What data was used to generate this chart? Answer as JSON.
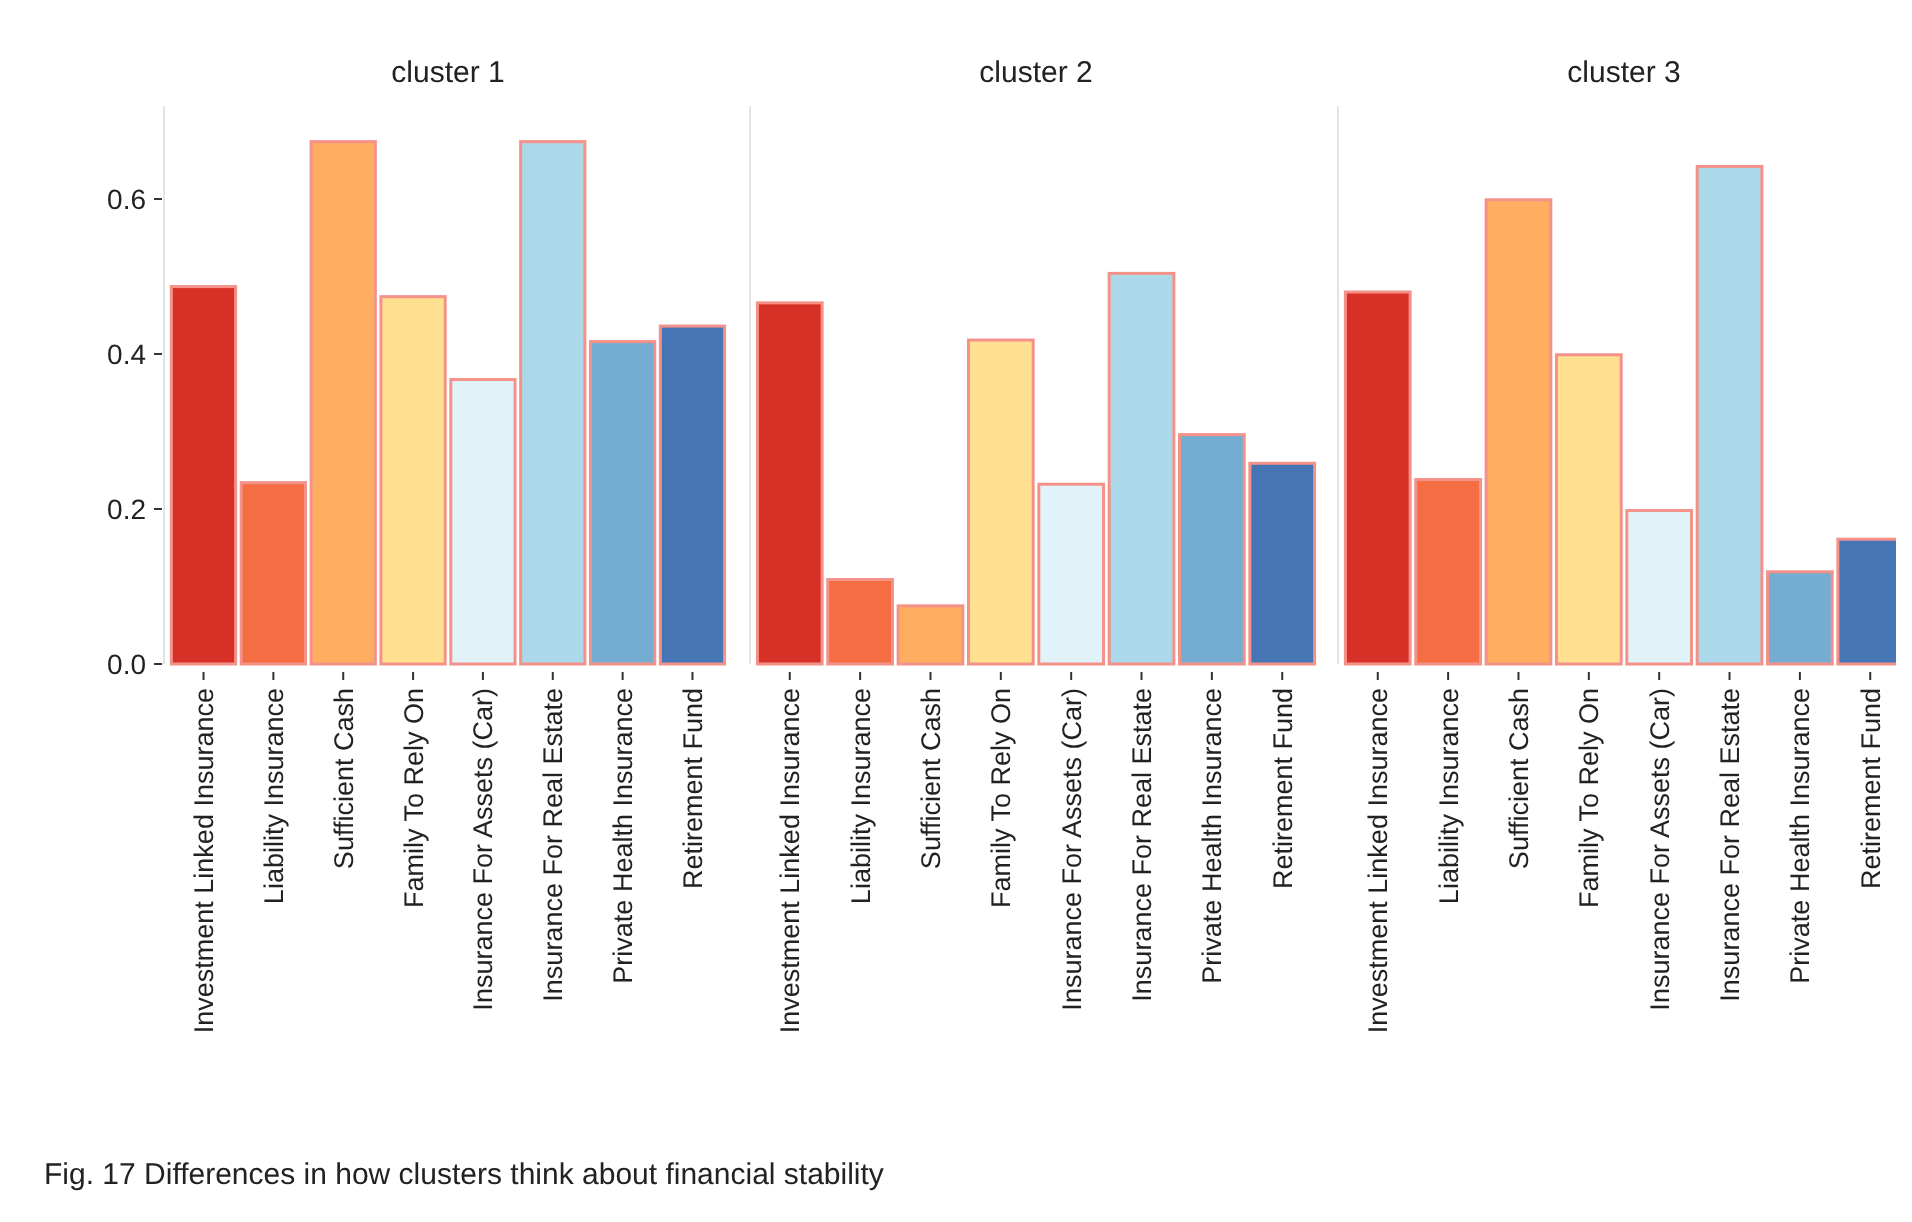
{
  "chart_data": [
    {
      "type": "bar",
      "title": "cluster 1",
      "categories": [
        "Investment Linked Insurance",
        "Liability Insurance",
        "Sufficient Cash",
        "Family To Rely On",
        "Insurance For Assets (Car)",
        "Insurance For Real Estate",
        "Private Health Insurance",
        "Retirement Fund"
      ],
      "values": [
        0.487,
        0.234,
        0.674,
        0.474,
        0.367,
        0.674,
        0.416,
        0.436
      ],
      "colors": [
        "#d73027",
        "#f46d43",
        "#fdae61",
        "#fee090",
        "#e0f3f8",
        "#abd9e9",
        "#74add1",
        "#4575b4"
      ],
      "ylim": [
        0,
        0.72
      ],
      "yticks": [
        {
          "value": 0,
          "label": "0.0"
        },
        0.2,
        0.4,
        0.6
      ],
      "annotations": [
        "Fig. 17  Differences in how clusters think about financial stability"
      ]
    },
    {
      "type": "bar",
      "title": "cluster 2",
      "categories": [
        "Investment Linked Insurance",
        "Liability Insurance",
        "Sufficient Cash",
        "Family To Rely On",
        "Insurance For Assets (Car)",
        "Insurance For Real Estate",
        "Private Health Insurance",
        "Retirement Fund"
      ],
      "values": [
        0.466,
        0.109,
        0.075,
        0.418,
        0.232,
        0.504,
        0.296,
        0.259
      ],
      "colors": [
        "#d73027",
        "#f46d43",
        "#fdae61",
        "#fee090",
        "#e0f3f8",
        "#abd9e9",
        "#74add1",
        "#4575b4"
      ],
      "ylim": [
        0,
        0.72
      ],
      "tick_labels": "x"
    },
    {
      "type": "bar",
      "title": "cluster 3",
      "categories": [
        "Investment Linked Insurance",
        "Liability Insurance",
        "Sufficient Cash",
        "Family To Rely On",
        "Insurance For Assets (Car)",
        "Insurance For Real Estate",
        "Private Health Insurance",
        "Retirement Fund"
      ],
      "values": [
        0.48,
        0.238,
        0.599,
        0.399,
        0.198,
        0.642,
        0.119,
        0.161
      ],
      "colors": [
        "#d73027",
        "#f46d43",
        "#fdae61",
        "#fee090",
        "#e0f3f8",
        "#abd9e9",
        "#74add1",
        "#4575b4"
      ],
      "ylim": [
        0,
        0.72
      ],
      "tick_labels": "x"
    }
  ]
}
